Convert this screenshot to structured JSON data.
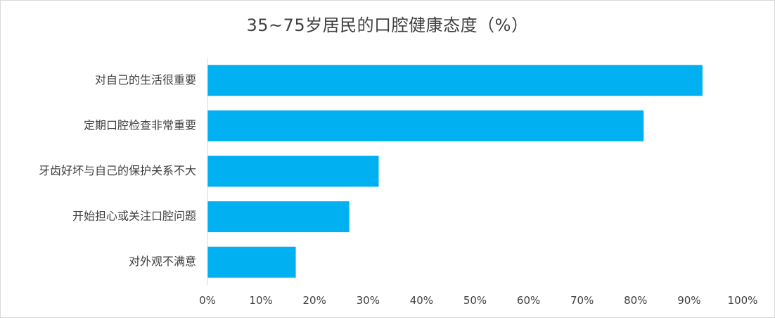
{
  "chart_data": {
    "type": "bar",
    "orientation": "horizontal",
    "title": "35~75岁居民的口腔健康态度（%）",
    "categories": [
      "对自己的生活很重要",
      "定期口腔检查非常重要",
      "牙齿好坏与自己的保护关系不大",
      "开始担心或关注口腔问题",
      "对外观不满意"
    ],
    "values": [
      92.5,
      81.5,
      32,
      26.5,
      16.5
    ],
    "xlim": [
      0,
      100
    ],
    "xticks": [
      "0%",
      "10%",
      "20%",
      "30%",
      "40%",
      "50%",
      "60%",
      "70%",
      "80%",
      "90%",
      "100%"
    ],
    "bar_color": "#00b0f0",
    "grid": false,
    "legend": "none"
  }
}
